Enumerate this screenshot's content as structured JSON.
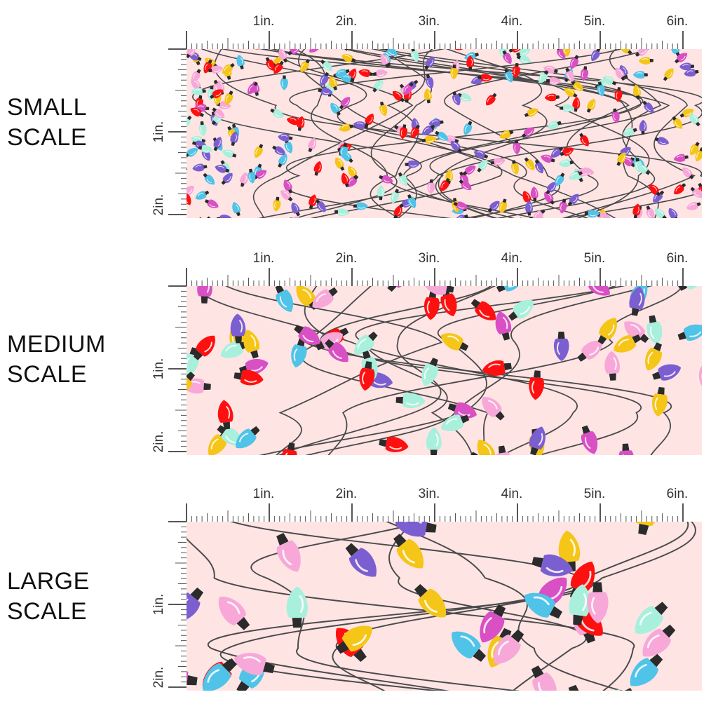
{
  "colors": {
    "background": "#ffe4e4",
    "wire": "#4a4a4a",
    "ruler": "#555555",
    "bulb_red": "#ff1010",
    "bulb_yellow": "#f5c518",
    "bulb_blue": "#4fc3e8",
    "bulb_mint": "#a8f0dc",
    "bulb_pink": "#f7a8d8",
    "bulb_magenta": "#d94fc4",
    "bulb_purple": "#7b5fd0",
    "bulb_cap": "#2b2b2b"
  },
  "ruler": {
    "top_ticks": [
      "1in.",
      "2in.",
      "3in.",
      "4in.",
      "5in.",
      "6in."
    ],
    "side_ticks": [
      "1in.",
      "2in."
    ]
  },
  "panels": [
    {
      "line1": "SMALL",
      "line2": "SCALE",
      "bulb_scale": 0.5
    },
    {
      "line1": "MEDIUM",
      "line2": "SCALE",
      "bulb_scale": 1.0
    },
    {
      "line1": "LARGE",
      "line2": "SCALE",
      "bulb_scale": 1.4
    }
  ],
  "pattern_motif": "string-lights"
}
